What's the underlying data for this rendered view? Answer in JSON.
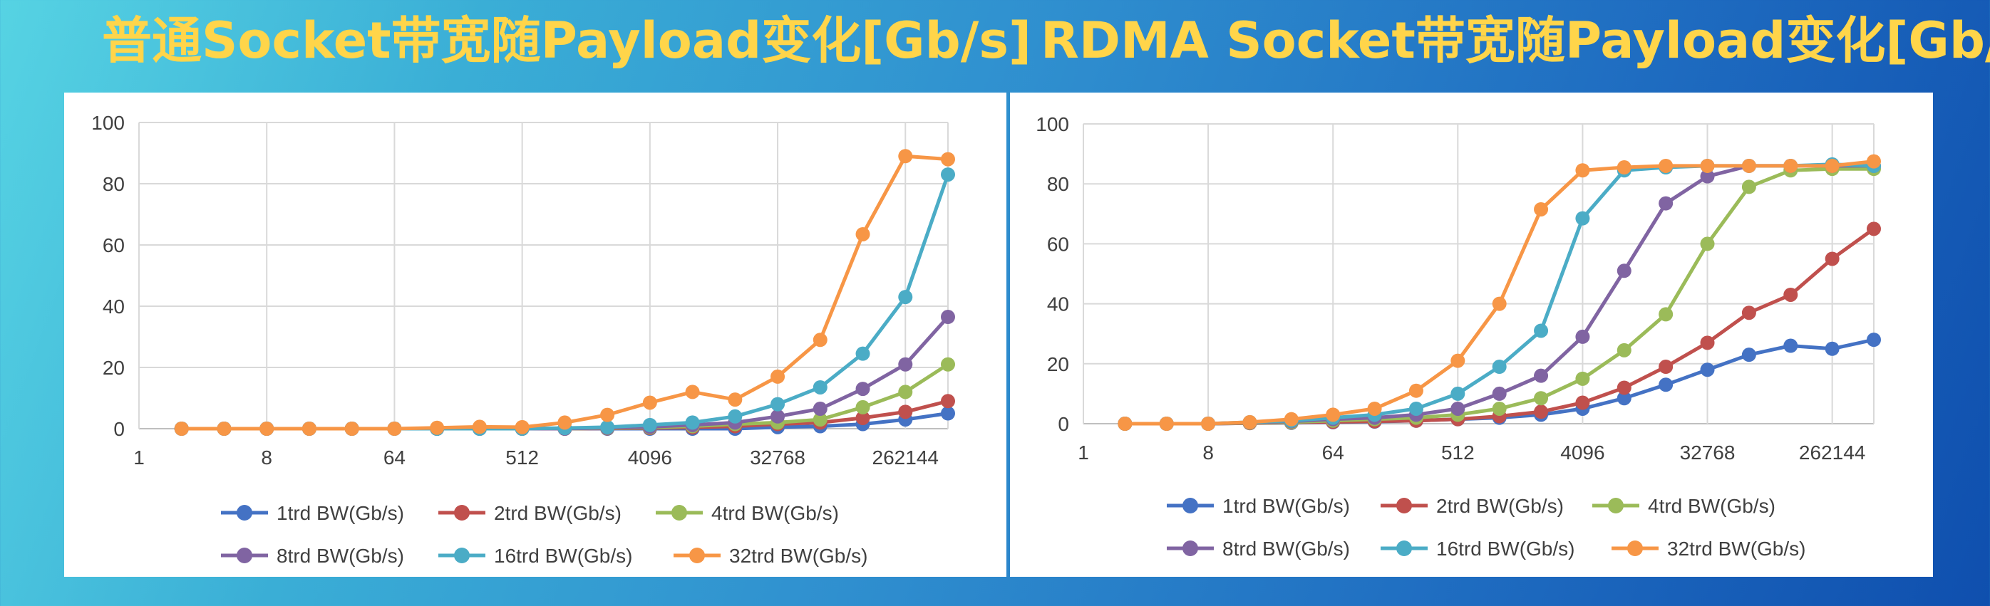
{
  "slide": {
    "colors": {
      "title": "#ffd54a",
      "panel": "#ffffff",
      "grid": "#d9d9d9",
      "axis": "#bfbfbf",
      "tick_text": "#404040"
    }
  },
  "chart_data": [
    {
      "type": "line",
      "title": "普通Socket带宽随Payload变化[Gb/s]",
      "x_scale": "log2",
      "x_tick_labels": [
        "1",
        "8",
        "64",
        "512",
        "4096",
        "32768",
        "262144"
      ],
      "x_ticks": [
        1,
        8,
        64,
        512,
        4096,
        32768,
        262144
      ],
      "xlim": [
        1,
        524288
      ],
      "ylim": [
        0,
        100
      ],
      "y_ticks": [
        0,
        20,
        40,
        60,
        80,
        100
      ],
      "y_tick_labels": [
        "0",
        "20",
        "40",
        "60",
        "80",
        "100"
      ],
      "grid": true,
      "legend_position": "bottom",
      "x": [
        2,
        4,
        8,
        16,
        32,
        64,
        128,
        256,
        512,
        1024,
        2048,
        4096,
        8192,
        16384,
        32768,
        65536,
        131072,
        262144,
        524288
      ],
      "series": [
        {
          "name": "1trd BW(Gb/s)",
          "color": "#4472c4",
          "values": [
            0,
            0,
            0,
            0,
            0,
            0,
            0,
            0,
            0,
            0,
            0,
            0,
            0,
            0,
            0.5,
            0.8,
            1.5,
            3,
            5
          ]
        },
        {
          "name": "2trd BW(Gb/s)",
          "color": "#c0504d",
          "values": [
            0,
            0,
            0,
            0,
            0,
            0,
            0,
            0,
            0,
            0,
            0.1,
            0.2,
            0.4,
            0.8,
            1.5,
            2,
            3.5,
            5.5,
            9
          ]
        },
        {
          "name": "4trd BW(Gb/s)",
          "color": "#9bbb59",
          "values": [
            0,
            0,
            0,
            0,
            0,
            0,
            0,
            0,
            0,
            0,
            0.2,
            0.4,
            0.8,
            1.5,
            2,
            3,
            7,
            12,
            21
          ]
        },
        {
          "name": "8trd BW(Gb/s)",
          "color": "#8064a2",
          "values": [
            0,
            0,
            0,
            0,
            0,
            0,
            0,
            0,
            0,
            0,
            0.3,
            0.6,
            1.2,
            2,
            4,
            6.5,
            13,
            21,
            36.5
          ]
        },
        {
          "name": "16trd BW(Gb/s)",
          "color": "#4bacc6",
          "values": [
            0,
            0,
            0,
            0,
            0,
            0,
            0,
            0,
            0,
            0.2,
            0.5,
            1.2,
            2,
            4,
            8,
            13.5,
            24.5,
            43,
            83
          ]
        },
        {
          "name": "32trd BW(Gb/s)",
          "color": "#f79646",
          "values": [
            0,
            0,
            0,
            0,
            0,
            0,
            0.3,
            0.6,
            0.5,
            2,
            4.5,
            8.5,
            12,
            9.5,
            17,
            29,
            63.5,
            89,
            88
          ]
        }
      ]
    },
    {
      "type": "line",
      "title": "RDMA Socket带宽随Payload变化[Gb/s]",
      "x_scale": "log2",
      "x_tick_labels": [
        "1",
        "8",
        "64",
        "512",
        "4096",
        "32768",
        "262144"
      ],
      "x_ticks": [
        1,
        8,
        64,
        512,
        4096,
        32768,
        262144
      ],
      "xlim": [
        1,
        524288
      ],
      "ylim": [
        0,
        100
      ],
      "y_ticks": [
        0,
        20,
        40,
        60,
        80,
        100
      ],
      "y_tick_labels": [
        "0",
        "20",
        "40",
        "60",
        "80",
        "100"
      ],
      "grid": true,
      "legend_position": "bottom",
      "x": [
        2,
        4,
        8,
        16,
        32,
        64,
        128,
        256,
        512,
        1024,
        2048,
        4096,
        8192,
        16384,
        32768,
        65536,
        131072,
        262144,
        524288
      ],
      "series": [
        {
          "name": "1trd BW(Gb/s)",
          "color": "#4472c4",
          "values": [
            0,
            0,
            0,
            0.2,
            0.3,
            0.5,
            0.7,
            1,
            1.5,
            2,
            3,
            5,
            8.5,
            13,
            18,
            23,
            26,
            25,
            28
          ]
        },
        {
          "name": "2trd BW(Gb/s)",
          "color": "#c0504d",
          "values": [
            0,
            0,
            0,
            0.2,
            0.4,
            0.6,
            0.8,
            1,
            1.5,
            2.5,
            4,
            7,
            12,
            19,
            27,
            37,
            43,
            55,
            65
          ]
        },
        {
          "name": "4trd BW(Gb/s)",
          "color": "#9bbb59",
          "values": [
            0,
            0,
            0,
            0.3,
            0.5,
            1,
            1.5,
            2,
            3,
            5,
            8.5,
            15,
            24.5,
            36.5,
            60,
            79,
            84.5,
            85,
            85
          ]
        },
        {
          "name": "8trd BW(Gb/s)",
          "color": "#8064a2",
          "values": [
            0,
            0,
            0,
            0.4,
            0.8,
            1.5,
            2,
            3,
            5,
            10,
            16,
            29,
            51,
            73.5,
            82.5,
            86,
            86,
            86,
            86
          ]
        },
        {
          "name": "16trd BW(Gb/s)",
          "color": "#4bacc6",
          "values": [
            0,
            0,
            0,
            0.5,
            1,
            2,
            3,
            5,
            10,
            19,
            31,
            68.5,
            84.5,
            85.5,
            86,
            86,
            86,
            86.5,
            86
          ]
        },
        {
          "name": "32trd BW(Gb/s)",
          "color": "#f79646",
          "values": [
            0,
            0,
            0,
            0.5,
            1.5,
            3,
            5,
            11,
            21,
            40,
            71.5,
            84.5,
            85.5,
            86,
            86,
            86,
            86,
            86,
            87.5
          ]
        }
      ]
    }
  ]
}
